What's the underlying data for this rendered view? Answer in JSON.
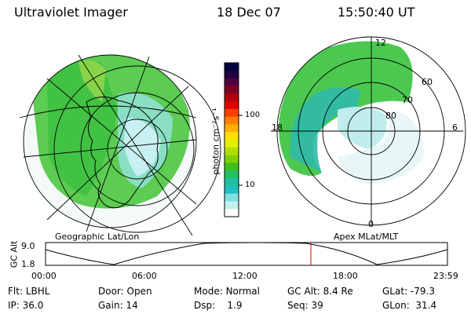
{
  "header": {
    "instrument": "Ultraviolet Imager",
    "date": "18 Dec 07",
    "time": "15:50:40 UT"
  },
  "colorbar": {
    "unit_label": "photon cm⁻²s⁻¹",
    "ticks": [
      "100",
      "10"
    ],
    "colors": [
      "#000040",
      "#200040",
      "#500040",
      "#800020",
      "#b00010",
      "#e00000",
      "#ff4000",
      "#ff8000",
      "#ffb000",
      "#ffe000",
      "#e0f000",
      "#b0e000",
      "#80d000",
      "#40c020",
      "#20c060",
      "#20c0a0",
      "#20c0c0",
      "#80e0e0",
      "#c0f0f0",
      "#ffffff"
    ]
  },
  "panels": {
    "left": {
      "caption": "Geographic Lat/Lon"
    },
    "right": {
      "caption": "Apex MLat/MLT",
      "mlt_labels": {
        "top": "12",
        "bottom": "0",
        "left": "18",
        "right": "6"
      },
      "lat_labels": [
        "60",
        "70",
        "80"
      ]
    }
  },
  "altitude_plot": {
    "axis_label": "GC Alt",
    "y_ticks": [
      "9.0",
      "1.8"
    ],
    "x_ticks": [
      "00:00",
      "06:00",
      "12:00",
      "18:00",
      "23:59"
    ],
    "marker_time": "15:50"
  },
  "status": {
    "row1": [
      {
        "label": "Flt:",
        "value": "LBHL"
      },
      {
        "label": "Door:",
        "value": "Open"
      },
      {
        "label": "Mode:",
        "value": "Normal"
      },
      {
        "label": "GC Alt:",
        "value": "8.4 Re"
      },
      {
        "label": "GLat:",
        "value": "-79.3"
      }
    ],
    "row2": [
      {
        "label": "IP:",
        "value": "36.0"
      },
      {
        "label": "Gain:",
        "value": "14"
      },
      {
        "label": "Dsp:",
        "value": "1.9"
      },
      {
        "label": "Seq:",
        "value": "39"
      },
      {
        "label": "GLon:",
        "value": "31.4"
      }
    ]
  },
  "colors": {
    "aurora_green": "#40c040",
    "aurora_cyan": "#30c0b0",
    "marker": "#e00000"
  }
}
